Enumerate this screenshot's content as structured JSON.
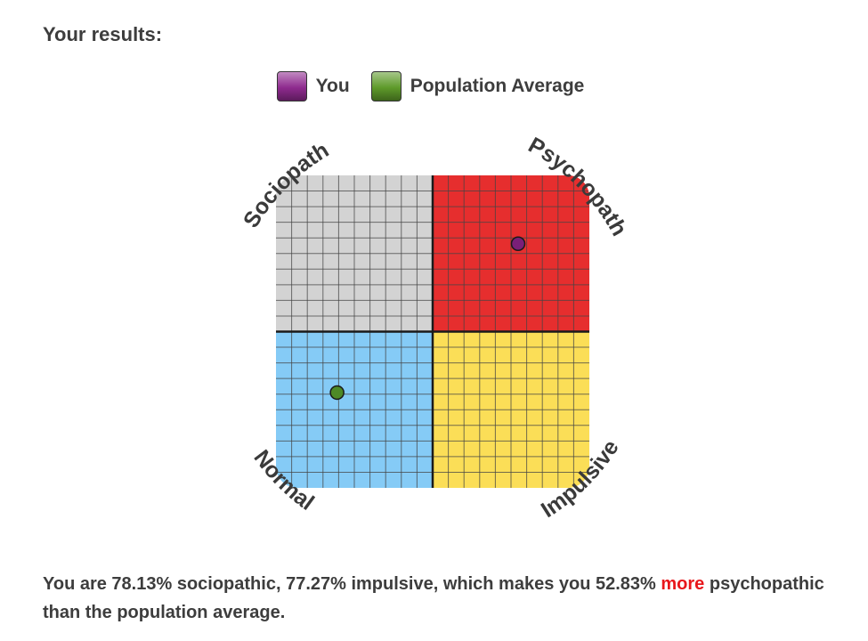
{
  "heading": "Your results:",
  "legend": [
    {
      "label": "You",
      "color": "#8e2a8e"
    },
    {
      "label": "Population Average",
      "color": "#5e9a2a"
    }
  ],
  "chart_data": {
    "type": "scatter",
    "quadrants": [
      {
        "label": "Sociopath",
        "position": "top-left",
        "color": "#d3d3d3"
      },
      {
        "label": "Psychopath",
        "position": "top-right",
        "color": "#e62e2e"
      },
      {
        "label": "Normal",
        "position": "bottom-left",
        "color": "#85cbf6"
      },
      {
        "label": "Impulsive",
        "position": "bottom-right",
        "color": "#fbde57"
      }
    ],
    "xlim": [
      0,
      100
    ],
    "ylim": [
      0,
      100
    ],
    "grid": true,
    "series": [
      {
        "name": "You",
        "x": 77.27,
        "y": 78.13,
        "color": "#7a1f78"
      },
      {
        "name": "Population Average",
        "x": 19.5,
        "y": 30.5,
        "color": "#4e8a26"
      }
    ]
  },
  "summary": {
    "before": "You are 78.13% sociopathic, 77.27% impulsive, which makes you 52.83% ",
    "highlight": "more",
    "after": " psychopathic than the population average."
  }
}
